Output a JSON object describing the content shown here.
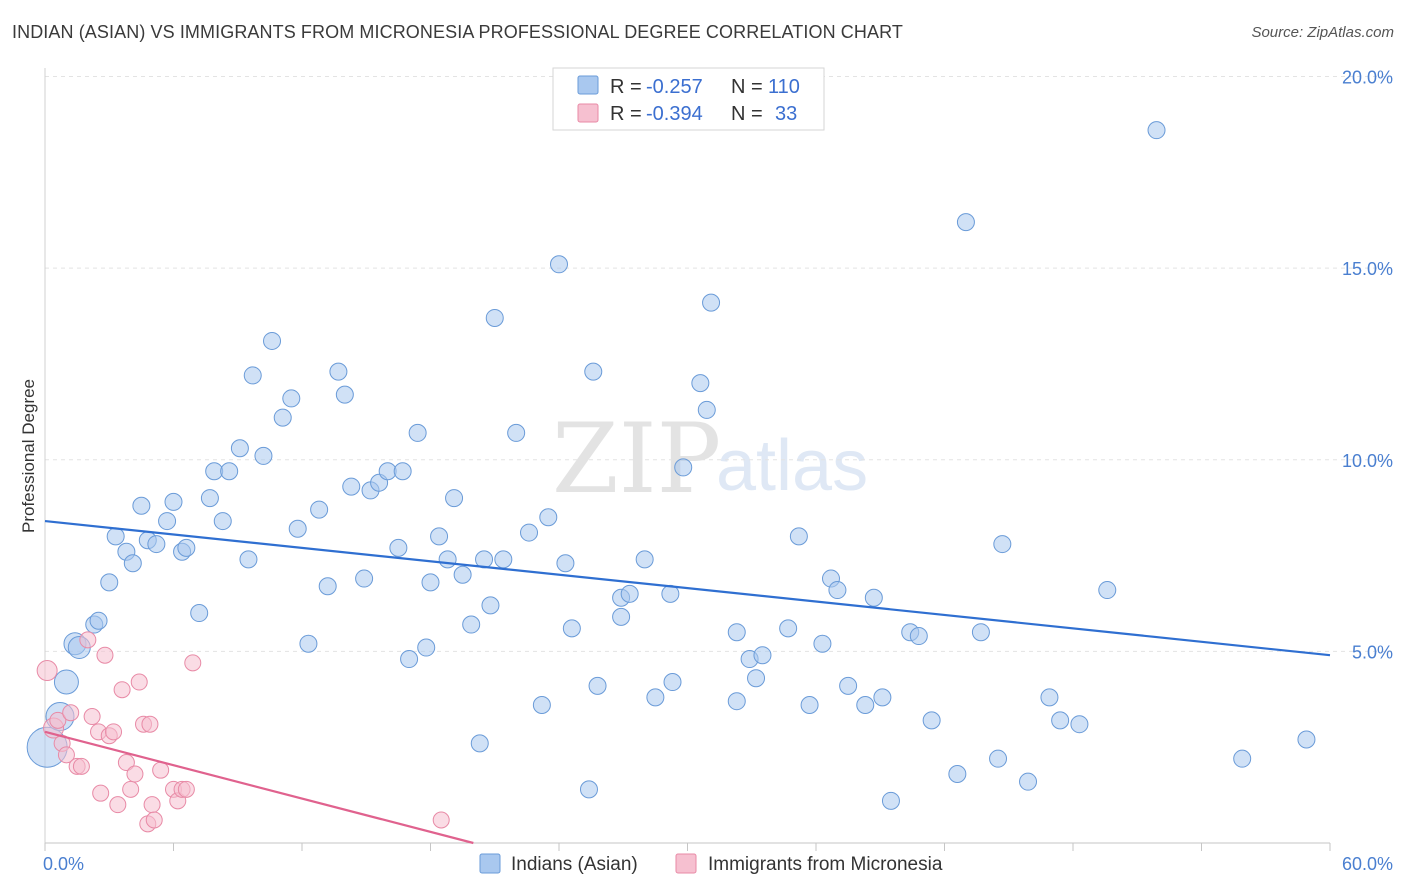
{
  "header": {
    "title": "INDIAN (ASIAN) VS IMMIGRANTS FROM MICRONESIA PROFESSIONAL DEGREE CORRELATION CHART",
    "source": "Source: ZipAtlas.com"
  },
  "watermark": {
    "zip": "ZIP",
    "atlas": "atlas"
  },
  "colors": {
    "blue_fill": "#a9c8ef",
    "blue_stroke": "#6a9bd8",
    "blue_line": "#2f6fd1",
    "pink_fill": "#f6c0d0",
    "pink_stroke": "#e88aa6",
    "pink_line": "#e0628e",
    "grid": "#e3e3e3",
    "tick_text": "#4a7fd0"
  },
  "legend": {
    "rows": [
      {
        "r_label": "R =",
        "r_value": "-0.257",
        "n_label": "N =",
        "n_value": "110"
      },
      {
        "r_label": "R =",
        "r_value": "-0.394",
        "n_label": "N =",
        "n_value": "33"
      }
    ]
  },
  "chart_data": {
    "type": "scatter",
    "xlabel": "",
    "ylabel": "Professional Degree",
    "xlim": [
      0,
      60
    ],
    "ylim": [
      0,
      20
    ],
    "x_tick_labels": [
      "0.0%",
      "60.0%"
    ],
    "y_tick_labels": [
      "5.0%",
      "10.0%",
      "15.0%",
      "20.0%"
    ],
    "grid": true,
    "legend_position": "bottom-center",
    "series": [
      {
        "name": "Indians (Asian)",
        "color": "#a9c8ef",
        "trend": [
          [
            0,
            8.4
          ],
          [
            60,
            4.9
          ]
        ],
        "points": [
          [
            0.1,
            2.5
          ],
          [
            0.7,
            3.3
          ],
          [
            1.0,
            4.2
          ],
          [
            1.4,
            5.2
          ],
          [
            1.6,
            5.1
          ],
          [
            2.3,
            5.7
          ],
          [
            2.5,
            5.8
          ],
          [
            3.0,
            6.8
          ],
          [
            3.3,
            8.0
          ],
          [
            3.8,
            7.6
          ],
          [
            4.1,
            7.3
          ],
          [
            4.5,
            8.8
          ],
          [
            4.8,
            7.9
          ],
          [
            5.2,
            7.8
          ],
          [
            5.7,
            8.4
          ],
          [
            6.0,
            8.9
          ],
          [
            6.4,
            7.6
          ],
          [
            6.6,
            7.7
          ],
          [
            7.2,
            6.0
          ],
          [
            7.7,
            9.0
          ],
          [
            7.9,
            9.7
          ],
          [
            8.3,
            8.4
          ],
          [
            8.6,
            9.7
          ],
          [
            9.1,
            10.3
          ],
          [
            9.5,
            7.4
          ],
          [
            9.7,
            12.2
          ],
          [
            10.2,
            10.1
          ],
          [
            10.6,
            13.1
          ],
          [
            11.1,
            11.1
          ],
          [
            11.5,
            11.6
          ],
          [
            11.8,
            8.2
          ],
          [
            12.3,
            5.2
          ],
          [
            12.8,
            8.7
          ],
          [
            13.2,
            6.7
          ],
          [
            13.7,
            12.3
          ],
          [
            14.0,
            11.7
          ],
          [
            14.3,
            9.3
          ],
          [
            14.9,
            6.9
          ],
          [
            15.2,
            9.2
          ],
          [
            15.6,
            9.4
          ],
          [
            16.0,
            9.7
          ],
          [
            16.5,
            7.7
          ],
          [
            16.7,
            9.7
          ],
          [
            17.0,
            4.8
          ],
          [
            17.4,
            10.7
          ],
          [
            17.8,
            5.1
          ],
          [
            18.0,
            6.8
          ],
          [
            18.4,
            8.0
          ],
          [
            18.8,
            7.4
          ],
          [
            19.1,
            9.0
          ],
          [
            19.5,
            7.0
          ],
          [
            19.9,
            5.7
          ],
          [
            20.3,
            2.6
          ],
          [
            20.5,
            7.4
          ],
          [
            20.8,
            6.2
          ],
          [
            21.0,
            13.7
          ],
          [
            21.4,
            7.4
          ],
          [
            22.0,
            10.7
          ],
          [
            22.6,
            8.1
          ],
          [
            23.2,
            3.6
          ],
          [
            23.5,
            8.5
          ],
          [
            24.0,
            15.1
          ],
          [
            24.3,
            7.3
          ],
          [
            24.6,
            5.6
          ],
          [
            25.4,
            1.4
          ],
          [
            25.6,
            12.3
          ],
          [
            25.8,
            4.1
          ],
          [
            26.9,
            5.9
          ],
          [
            26.9,
            6.4
          ],
          [
            27.3,
            6.5
          ],
          [
            28.0,
            7.4
          ],
          [
            28.5,
            3.8
          ],
          [
            29.2,
            6.5
          ],
          [
            29.3,
            4.2
          ],
          [
            29.8,
            9.8
          ],
          [
            30.6,
            12.0
          ],
          [
            30.9,
            11.3
          ],
          [
            31.1,
            14.1
          ],
          [
            32.3,
            3.7
          ],
          [
            32.3,
            5.5
          ],
          [
            32.9,
            4.8
          ],
          [
            33.2,
            4.3
          ],
          [
            33.5,
            4.9
          ],
          [
            34.7,
            5.6
          ],
          [
            35.2,
            8.0
          ],
          [
            35.7,
            3.6
          ],
          [
            36.3,
            5.2
          ],
          [
            36.7,
            6.9
          ],
          [
            37.0,
            6.6
          ],
          [
            37.5,
            4.1
          ],
          [
            38.3,
            3.6
          ],
          [
            38.7,
            6.4
          ],
          [
            39.1,
            3.8
          ],
          [
            39.5,
            1.1
          ],
          [
            40.4,
            5.5
          ],
          [
            40.8,
            5.4
          ],
          [
            41.4,
            3.2
          ],
          [
            42.6,
            1.8
          ],
          [
            43.0,
            16.2
          ],
          [
            43.7,
            5.5
          ],
          [
            44.5,
            2.2
          ],
          [
            44.7,
            7.8
          ],
          [
            45.9,
            1.6
          ],
          [
            46.9,
            3.8
          ],
          [
            47.4,
            3.2
          ],
          [
            48.3,
            3.1
          ],
          [
            49.6,
            6.6
          ],
          [
            51.9,
            18.6
          ],
          [
            55.9,
            2.2
          ],
          [
            58.9,
            2.7
          ]
        ]
      },
      {
        "name": "Immigrants from Micronesia",
        "color": "#f6c0d0",
        "trend": [
          [
            0,
            2.9
          ],
          [
            20,
            0.0
          ]
        ],
        "points": [
          [
            0.1,
            4.5
          ],
          [
            0.4,
            3.0
          ],
          [
            0.6,
            3.2
          ],
          [
            0.8,
            2.6
          ],
          [
            1.0,
            2.3
          ],
          [
            1.2,
            3.4
          ],
          [
            1.5,
            2.0
          ],
          [
            1.7,
            2.0
          ],
          [
            2.0,
            5.3
          ],
          [
            2.2,
            3.3
          ],
          [
            2.5,
            2.9
          ],
          [
            2.6,
            1.3
          ],
          [
            2.8,
            4.9
          ],
          [
            3.0,
            2.8
          ],
          [
            3.2,
            2.9
          ],
          [
            3.4,
            1.0
          ],
          [
            3.6,
            4.0
          ],
          [
            3.8,
            2.1
          ],
          [
            4.0,
            1.4
          ],
          [
            4.2,
            1.8
          ],
          [
            4.4,
            4.2
          ],
          [
            4.6,
            3.1
          ],
          [
            4.8,
            0.5
          ],
          [
            4.9,
            3.1
          ],
          [
            5.0,
            1.0
          ],
          [
            5.1,
            0.6
          ],
          [
            5.4,
            1.9
          ],
          [
            6.0,
            1.4
          ],
          [
            6.2,
            1.1
          ],
          [
            6.4,
            1.4
          ],
          [
            6.6,
            1.4
          ],
          [
            6.9,
            4.7
          ],
          [
            18.5,
            0.6
          ]
        ]
      }
    ]
  }
}
